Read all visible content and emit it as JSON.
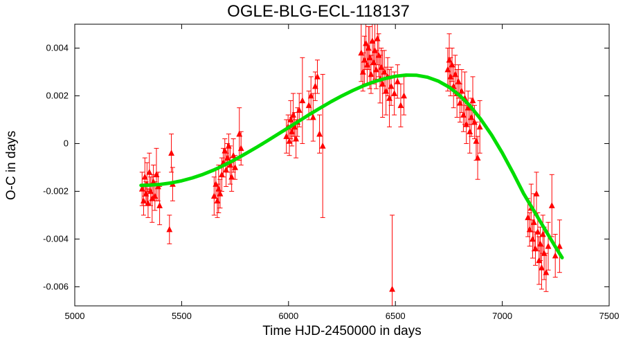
{
  "chart_data": {
    "type": "scatter",
    "title": "OGLE-BLG-ECL-118137",
    "xlabel": "Time HJD-2450000 in days",
    "ylabel": "O-C in days",
    "xlim": [
      5000,
      7500
    ],
    "ylim": [
      -0.0068,
      0.005
    ],
    "xticks": [
      5000,
      5500,
      6000,
      6500,
      7000,
      7500
    ],
    "yticks": [
      -0.006,
      -0.004,
      -0.002,
      0,
      0.002,
      0.004
    ],
    "grid": false,
    "legend": false,
    "axis_color": "#000000",
    "series": [
      {
        "name": "O-C measurements",
        "type": "scatter_errorbar",
        "marker": "triangle-up",
        "color": "#ff0000",
        "points": [
          [
            5315,
            -0.0019,
            0.0007
          ],
          [
            5322,
            -0.0024,
            0.0006
          ],
          [
            5328,
            -0.0014,
            0.0008
          ],
          [
            5333,
            -0.0021,
            0.0005
          ],
          [
            5338,
            -0.0017,
            0.0009
          ],
          [
            5343,
            -0.0025,
            0.0006
          ],
          [
            5349,
            -0.0012,
            0.0008
          ],
          [
            5355,
            -0.002,
            0.0006
          ],
          [
            5362,
            -0.0023,
            0.001
          ],
          [
            5368,
            -0.0016,
            0.0007
          ],
          [
            5375,
            -0.0022,
            0.0006
          ],
          [
            5382,
            -0.0013,
            0.0011
          ],
          [
            5390,
            -0.0018,
            0.0006
          ],
          [
            5397,
            -0.0026,
            0.0008
          ],
          [
            5443,
            -0.0036,
            0.0006
          ],
          [
            5452,
            -0.0004,
            0.0008
          ],
          [
            5458,
            -0.0017,
            0.0007
          ],
          [
            5652,
            -0.0022,
            0.0008
          ],
          [
            5660,
            -0.0017,
            0.0006
          ],
          [
            5667,
            -0.0024,
            0.0007
          ],
          [
            5673,
            -0.0019,
            0.001
          ],
          [
            5680,
            -0.0021,
            0.0006
          ],
          [
            5688,
            -0.0013,
            0.0007
          ],
          [
            5695,
            -0.0008,
            0.0006
          ],
          [
            5702,
            -0.0003,
            0.0005
          ],
          [
            5708,
            -0.0011,
            0.0007
          ],
          [
            5714,
            -0.0006,
            0.0006
          ],
          [
            5720,
            -0.0001,
            0.0005
          ],
          [
            5727,
            -0.0009,
            0.0008
          ],
          [
            5734,
            -0.0014,
            0.0006
          ],
          [
            5742,
            -0.0005,
            0.0007
          ],
          [
            5750,
            -0.001,
            0.0005
          ],
          [
            5770,
            0.0004,
            0.0011
          ],
          [
            5778,
            -0.0002,
            0.0007
          ],
          [
            5990,
            0.0003,
            0.0007
          ],
          [
            5998,
            0.0007,
            0.0005
          ],
          [
            6004,
            0.0001,
            0.0006
          ],
          [
            6010,
            0.001,
            0.0008
          ],
          [
            6016,
            0.0005,
            0.0006
          ],
          [
            6022,
            0.0012,
            0.0009
          ],
          [
            6028,
            0.0007,
            0.0006
          ],
          [
            6035,
            0.0002,
            0.0008
          ],
          [
            6042,
            0.0009,
            0.0006
          ],
          [
            6050,
            0.0014,
            0.0007
          ],
          [
            6065,
            0.0018,
            0.0018
          ],
          [
            6095,
            0.0016,
            0.0006
          ],
          [
            6105,
            0.002,
            0.0008
          ],
          [
            6115,
            0.0011,
            0.001
          ],
          [
            6125,
            0.0024,
            0.0006
          ],
          [
            6135,
            0.0028,
            0.0007
          ],
          [
            6145,
            0.0004,
            0.0008
          ],
          [
            6160,
            -0.0001,
            0.003
          ],
          [
            6340,
            0.0038,
            0.0012
          ],
          [
            6348,
            0.003,
            0.0008
          ],
          [
            6355,
            0.0035,
            0.001
          ],
          [
            6362,
            0.0042,
            0.0011
          ],
          [
            6368,
            0.0033,
            0.0008
          ],
          [
            6374,
            0.004,
            0.0009
          ],
          [
            6380,
            0.0036,
            0.0013
          ],
          [
            6386,
            0.0029,
            0.0008
          ],
          [
            6392,
            0.0043,
            0.001
          ],
          [
            6398,
            0.0034,
            0.0009
          ],
          [
            6404,
            0.0039,
            0.0012
          ],
          [
            6410,
            0.0031,
            0.0008
          ],
          [
            6416,
            0.0044,
            0.0011
          ],
          [
            6422,
            0.0037,
            0.0009
          ],
          [
            6428,
            0.0027,
            0.001
          ],
          [
            6434,
            0.0032,
            0.0008
          ],
          [
            6440,
            0.0025,
            0.0014
          ],
          [
            6448,
            0.003,
            0.0009
          ],
          [
            6456,
            0.0022,
            0.001
          ],
          [
            6464,
            0.0028,
            0.0008
          ],
          [
            6472,
            0.0019,
            0.0012
          ],
          [
            6480,
            0.0024,
            0.0008
          ],
          [
            6485,
            -0.0061,
            0.0031
          ],
          [
            6495,
            0.0021,
            0.0009
          ],
          [
            6510,
            0.0026,
            0.0007
          ],
          [
            6525,
            0.0016,
            0.0009
          ],
          [
            6540,
            0.002,
            0.0008
          ],
          [
            6745,
            0.0031,
            0.0009
          ],
          [
            6752,
            0.0035,
            0.0011
          ],
          [
            6758,
            0.0028,
            0.0008
          ],
          [
            6765,
            0.0033,
            0.0007
          ],
          [
            6772,
            0.0024,
            0.0009
          ],
          [
            6780,
            0.0029,
            0.0008
          ],
          [
            6788,
            0.0021,
            0.001
          ],
          [
            6795,
            0.0026,
            0.0007
          ],
          [
            6802,
            0.0017,
            0.0008
          ],
          [
            6810,
            0.0022,
            0.0009
          ],
          [
            6818,
            0.0012,
            0.0007
          ],
          [
            6825,
            0.0019,
            0.0011
          ],
          [
            6832,
            0.0008,
            0.0008
          ],
          [
            6840,
            0.0015,
            0.0007
          ],
          [
            6848,
            0.0005,
            0.0009
          ],
          [
            6855,
            0.0011,
            0.0008
          ],
          [
            6862,
            0.0018,
            0.001
          ],
          [
            6870,
            0.0009,
            0.0007
          ],
          [
            6878,
            0.0001,
            0.0008
          ],
          [
            6885,
            -0.0006,
            0.0009
          ],
          [
            6895,
            0.0007,
            0.0011
          ],
          [
            7120,
            -0.0031,
            0.0008
          ],
          [
            7128,
            -0.0036,
            0.0007
          ],
          [
            7135,
            -0.0027,
            0.001
          ],
          [
            7142,
            -0.004,
            0.0008
          ],
          [
            7148,
            -0.0033,
            0.0012
          ],
          [
            7155,
            -0.0044,
            0.0007
          ],
          [
            7160,
            -0.0021,
            0.0009
          ],
          [
            7166,
            -0.0037,
            0.0008
          ],
          [
            7172,
            -0.0049,
            0.001
          ],
          [
            7178,
            -0.0042,
            0.0007
          ],
          [
            7184,
            -0.0052,
            0.0009
          ],
          [
            7190,
            -0.0038,
            0.0008
          ],
          [
            7196,
            -0.0046,
            0.0011
          ],
          [
            7205,
            -0.0054,
            0.0008
          ],
          [
            7215,
            -0.0043,
            0.001
          ],
          [
            7232,
            -0.0026,
            0.0013
          ],
          [
            7248,
            -0.0047,
            0.0009
          ],
          [
            7268,
            -0.0043,
            0.0011
          ]
        ]
      },
      {
        "name": "model fit",
        "type": "line",
        "color": "#00dd00",
        "width": 5,
        "points": [
          [
            5310,
            -0.00175
          ],
          [
            5350,
            -0.00174
          ],
          [
            5400,
            -0.00171
          ],
          [
            5450,
            -0.00165
          ],
          [
            5500,
            -0.00156
          ],
          [
            5550,
            -0.00144
          ],
          [
            5600,
            -0.00129
          ],
          [
            5650,
            -0.00111
          ],
          [
            5700,
            -0.0009
          ],
          [
            5750,
            -0.00067
          ],
          [
            5800,
            -0.00042
          ],
          [
            5850,
            -0.00016
          ],
          [
            5900,
            0.00011
          ],
          [
            5950,
            0.00039
          ],
          [
            6000,
            0.00067
          ],
          [
            6050,
            0.00095
          ],
          [
            6100,
            0.00123
          ],
          [
            6150,
            0.0015
          ],
          [
            6200,
            0.00176
          ],
          [
            6250,
            0.002
          ],
          [
            6300,
            0.00222
          ],
          [
            6350,
            0.00242
          ],
          [
            6400,
            0.00259
          ],
          [
            6450,
            0.00272
          ],
          [
            6500,
            0.00282
          ],
          [
            6550,
            0.00287
          ],
          [
            6600,
            0.00286
          ],
          [
            6650,
            0.00278
          ],
          [
            6700,
            0.00262
          ],
          [
            6750,
            0.00237
          ],
          [
            6800,
            0.00202
          ],
          [
            6850,
            0.00157
          ],
          [
            6900,
            0.00101
          ],
          [
            6950,
            0.00036
          ],
          [
            7000,
            -0.00039
          ],
          [
            7050,
            -0.00122
          ],
          [
            7100,
            -0.0021
          ],
          [
            7150,
            -0.00285
          ],
          [
            7200,
            -0.0036
          ],
          [
            7250,
            -0.00435
          ],
          [
            7280,
            -0.00478
          ]
        ]
      }
    ]
  }
}
